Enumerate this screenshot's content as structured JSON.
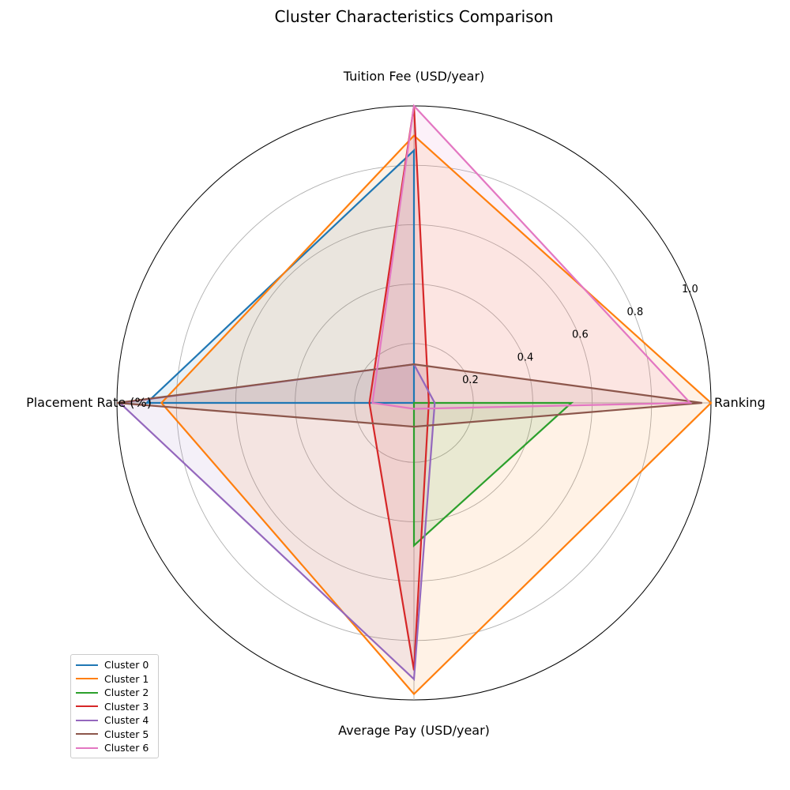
{
  "chart_data": {
    "type": "radar",
    "title": "Cluster Characteristics Comparison",
    "axes": [
      "Tuition Fee (USD/year)",
      "Ranking",
      "Average Pay (USD/year)",
      "Placement Rate (%)"
    ],
    "rlim": [
      0,
      1.0
    ],
    "rticks": [
      0.2,
      0.4,
      0.6,
      0.8,
      1.0
    ],
    "rtick_labels": [
      "0.2",
      "0.4",
      "0.6",
      "0.8",
      "1.0"
    ],
    "grid": true,
    "legend_position": "lower-left",
    "series": [
      {
        "name": "Cluster 0",
        "color": "#1f77b4",
        "values": [
          0.85,
          0.0,
          0.0,
          0.9
        ]
      },
      {
        "name": "Cluster 1",
        "color": "#ff7f0e",
        "values": [
          0.9,
          1.0,
          0.98,
          0.85
        ]
      },
      {
        "name": "Cluster 2",
        "color": "#2ca02c",
        "values": [
          0.0,
          0.53,
          0.48,
          0.0
        ]
      },
      {
        "name": "Cluster 3",
        "color": "#d62728",
        "values": [
          1.0,
          0.05,
          0.9,
          0.15
        ]
      },
      {
        "name": "Cluster 4",
        "color": "#9467bd",
        "values": [
          0.13,
          0.07,
          0.93,
          0.99
        ]
      },
      {
        "name": "Cluster 5",
        "color": "#8c564b",
        "values": [
          0.13,
          0.97,
          0.08,
          1.0
        ]
      },
      {
        "name": "Cluster 6",
        "color": "#e377c2",
        "values": [
          1.0,
          0.93,
          0.02,
          0.14
        ]
      }
    ]
  }
}
